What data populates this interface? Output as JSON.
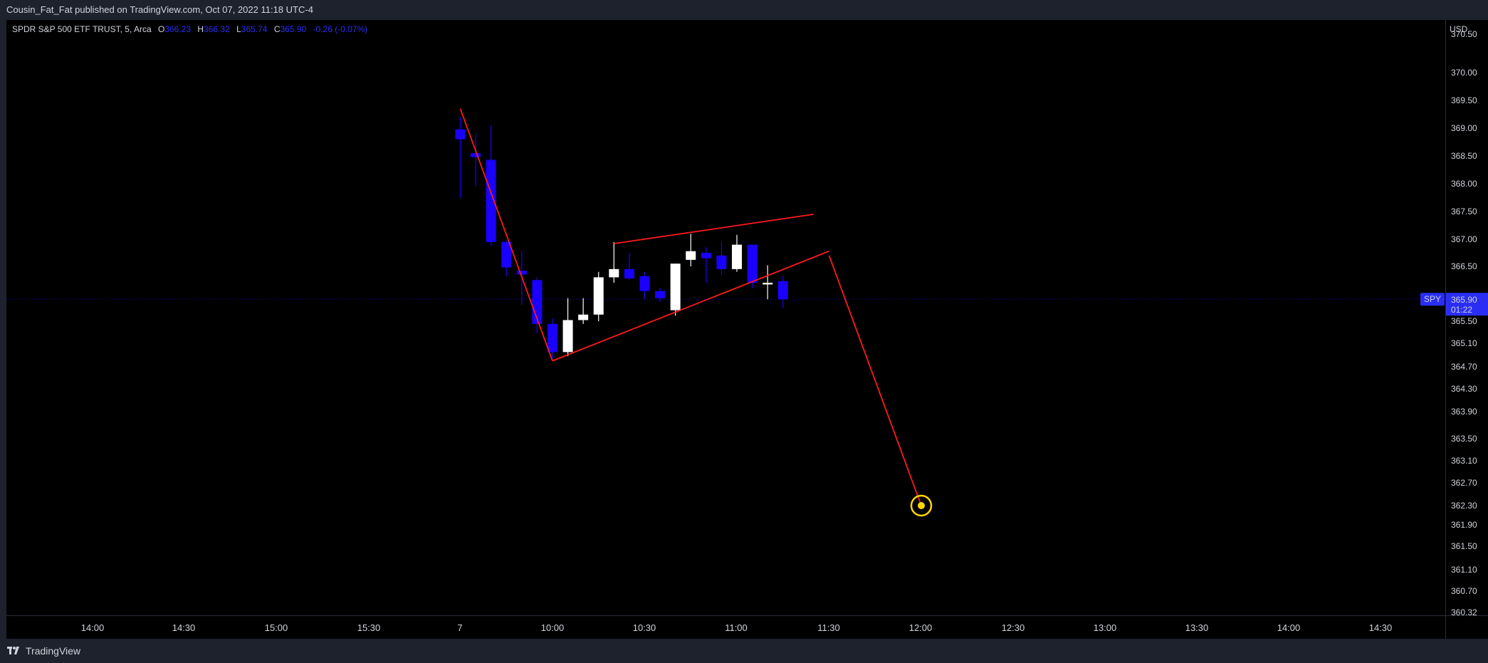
{
  "header": {
    "publisher_line": "Cousin_Fat_Fat published on TradingView.com, Oct 07, 2022 11:18 UTC-4"
  },
  "footer": {
    "brand": "TradingView"
  },
  "legend": {
    "symbol_line": "SPDR S&P 500 ETF TRUST, 5, Arca",
    "o_key": "O",
    "o_val": "366.23",
    "h_key": "H",
    "h_val": "366.32",
    "l_key": "L",
    "l_val": "365.74",
    "c_key": "C",
    "c_val": "365.90",
    "change": "-0.26 (-0.07%)"
  },
  "price_axis": {
    "currency": "USD",
    "symbol_badge": "SPY",
    "last_price": "365.90",
    "countdown": "01:22",
    "badge_color": "#2a2ef5"
  },
  "chart_data": {
    "type": "candlestick",
    "symbol": "SPY",
    "interval": "5",
    "exchange": "Arca",
    "date": "Oct 07, 2022",
    "y_ticks": [
      "370.50",
      "370.00",
      "369.50",
      "369.00",
      "368.50",
      "368.00",
      "367.50",
      "367.00",
      "366.50",
      "365.50",
      "365.10",
      "364.70",
      "364.30",
      "363.90",
      "363.50",
      "363.10",
      "362.70",
      "362.30",
      "361.90",
      "361.50",
      "361.10",
      "360.70",
      "360.32"
    ],
    "x_ticks": [
      "14:00",
      "14:30",
      "15:00",
      "15:30",
      "7",
      "10:00",
      "10:30",
      "11:00",
      "11:30",
      "12:00",
      "12:30",
      "13:00",
      "13:30",
      "14:00",
      "14:30"
    ],
    "up_color": "#ffffff",
    "down_color": "#1a00ff",
    "candles": [
      {
        "t": "09:30",
        "o": 368.98,
        "h": 369.2,
        "l": 367.75,
        "c": 368.8
      },
      {
        "t": "09:35",
        "o": 368.55,
        "h": 368.9,
        "l": 367.95,
        "c": 368.48
      },
      {
        "t": "09:40",
        "o": 368.43,
        "h": 369.05,
        "l": 366.88,
        "c": 366.95
      },
      {
        "t": "09:45",
        "o": 366.95,
        "h": 366.98,
        "l": 366.32,
        "c": 366.48
      },
      {
        "t": "09:50",
        "o": 366.42,
        "h": 366.78,
        "l": 365.8,
        "c": 366.35
      },
      {
        "t": "09:55",
        "o": 366.25,
        "h": 366.3,
        "l": 365.28,
        "c": 365.45
      },
      {
        "t": "10:00",
        "o": 365.45,
        "h": 365.55,
        "l": 364.8,
        "c": 364.95
      },
      {
        "t": "10:05",
        "o": 364.95,
        "h": 365.92,
        "l": 364.88,
        "c": 365.52
      },
      {
        "t": "10:10",
        "o": 365.52,
        "h": 365.92,
        "l": 365.45,
        "c": 365.62
      },
      {
        "t": "10:15",
        "o": 365.62,
        "h": 366.4,
        "l": 365.5,
        "c": 366.3
      },
      {
        "t": "10:20",
        "o": 366.3,
        "h": 366.95,
        "l": 366.2,
        "c": 366.45
      },
      {
        "t": "10:25",
        "o": 366.45,
        "h": 366.75,
        "l": 366.25,
        "c": 366.28
      },
      {
        "t": "10:30",
        "o": 366.32,
        "h": 366.4,
        "l": 365.9,
        "c": 366.05
      },
      {
        "t": "10:35",
        "o": 366.05,
        "h": 366.1,
        "l": 365.85,
        "c": 365.92
      },
      {
        "t": "10:40",
        "o": 365.7,
        "h": 366.55,
        "l": 365.6,
        "c": 366.55
      },
      {
        "t": "10:45",
        "o": 366.62,
        "h": 367.1,
        "l": 366.5,
        "c": 366.78
      },
      {
        "t": "10:50",
        "o": 366.75,
        "h": 366.85,
        "l": 366.2,
        "c": 366.65
      },
      {
        "t": "10:55",
        "o": 366.7,
        "h": 366.95,
        "l": 366.35,
        "c": 366.45
      },
      {
        "t": "11:00",
        "o": 366.45,
        "h": 367.08,
        "l": 366.4,
        "c": 366.9
      },
      {
        "t": "11:05",
        "o": 366.9,
        "h": 366.9,
        "l": 366.1,
        "c": 366.2
      },
      {
        "t": "11:10",
        "o": 366.17,
        "h": 366.52,
        "l": 365.9,
        "c": 366.2
      },
      {
        "t": "11:15",
        "o": 366.23,
        "h": 366.32,
        "l": 365.74,
        "c": 365.9
      }
    ],
    "last_price_line": 365.9,
    "drawings": {
      "line_color": "#ff1a1a",
      "target_color": "#ffd600",
      "wedge_upper": [
        {
          "t": "10:20",
          "p": 366.92
        },
        {
          "t": "11:25",
          "p": 367.45
        }
      ],
      "wedge_lower": [
        {
          "t": "10:00",
          "p": 364.8
        },
        {
          "t": "11:30",
          "p": 366.78
        }
      ],
      "drop_to_start": [
        {
          "t": "09:30",
          "p": 369.35
        },
        {
          "t": "10:00",
          "p": 364.8
        }
      ],
      "projection": [
        {
          "t": "11:30",
          "p": 366.7
        },
        {
          "t": "12:00",
          "p": 362.3
        }
      ],
      "target": {
        "t": "12:00",
        "p": 362.3
      }
    }
  }
}
